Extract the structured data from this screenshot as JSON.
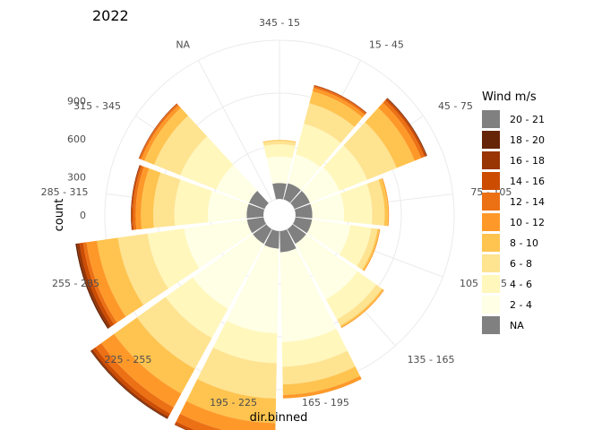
{
  "chart_data": {
    "type": "polar-stacked-bar",
    "title": "2022",
    "xlabel": "dir.binned",
    "ylabel": "count",
    "ylim": [
      0,
      900
    ],
    "y_ticks": [
      0,
      300,
      600,
      900
    ],
    "categories": [
      "345 - 15",
      "15 - 45",
      "45 - 75",
      "75 - 105",
      "105 - 135",
      "135 - 165",
      "165 - 195",
      "195 - 225",
      "225 - 255",
      "255 - 285",
      "285 - 315",
      "315 - 345",
      "NA"
    ],
    "series": [
      {
        "name": "NA",
        "color": "#808080",
        "values": [
          90,
          95,
          95,
          95,
          95,
          95,
          120,
          100,
          95,
          95,
          95,
          95,
          0
        ]
      },
      {
        "name": "2 - 4",
        "color": "#FFFFE5",
        "values": [
          150,
          170,
          180,
          180,
          220,
          360,
          510,
          480,
          420,
          360,
          220,
          200,
          0
        ]
      },
      {
        "name": "4 - 6",
        "color": "#FFF7BC",
        "values": [
          70,
          180,
          170,
          160,
          120,
          130,
          140,
          170,
          190,
          210,
          190,
          220,
          0
        ]
      },
      {
        "name": "6 - 8",
        "color": "#FEE391",
        "values": [
          20,
          120,
          180,
          70,
          35,
          40,
          100,
          200,
          200,
          170,
          120,
          160,
          0
        ]
      },
      {
        "name": "8 - 10",
        "color": "#FEC44F",
        "values": [
          5,
          70,
          110,
          20,
          10,
          10,
          60,
          140,
          160,
          120,
          70,
          60,
          0
        ]
      },
      {
        "name": "10 - 12",
        "color": "#FE9929",
        "values": [
          0,
          20,
          40,
          5,
          5,
          5,
          20,
          80,
          90,
          60,
          30,
          20,
          0
        ]
      },
      {
        "name": "12 - 14",
        "color": "#EC7014",
        "values": [
          0,
          10,
          20,
          0,
          0,
          0,
          0,
          50,
          40,
          20,
          15,
          10,
          0
        ]
      },
      {
        "name": "14 - 16",
        "color": "#CC4C02",
        "values": [
          0,
          5,
          10,
          0,
          0,
          0,
          0,
          15,
          20,
          20,
          8,
          3,
          0
        ]
      },
      {
        "name": "16 - 18",
        "color": "#993404",
        "values": [
          0,
          2,
          5,
          0,
          0,
          0,
          0,
          5,
          10,
          15,
          4,
          2,
          0
        ]
      },
      {
        "name": "18 - 20",
        "color": "#662506",
        "values": [
          0,
          0,
          2,
          0,
          0,
          0,
          0,
          0,
          5,
          8,
          0,
          0,
          0
        ]
      },
      {
        "name": "20 - 21",
        "color": "#808080",
        "values": [
          0,
          0,
          0,
          0,
          0,
          0,
          0,
          0,
          0,
          0,
          0,
          0,
          0
        ]
      }
    ],
    "legend": {
      "title": "Wind m/s",
      "position": "right",
      "entries": [
        {
          "label": "20 - 21",
          "color": "#808080"
        },
        {
          "label": "18 - 20",
          "color": "#662506"
        },
        {
          "label": "16 - 18",
          "color": "#993404"
        },
        {
          "label": "14 - 16",
          "color": "#CC4C02"
        },
        {
          "label": "12 - 14",
          "color": "#EC7014"
        },
        {
          "label": "10 - 12",
          "color": "#FE9929"
        },
        {
          "label": "8 - 10",
          "color": "#FEC44F"
        },
        {
          "label": "6 - 8",
          "color": "#FEE391"
        },
        {
          "label": "4 - 6",
          "color": "#FFF7BC"
        },
        {
          "label": "2 - 4",
          "color": "#FFFFE5"
        },
        {
          "label": "NA",
          "color": "#808080"
        }
      ]
    },
    "grid": true
  }
}
